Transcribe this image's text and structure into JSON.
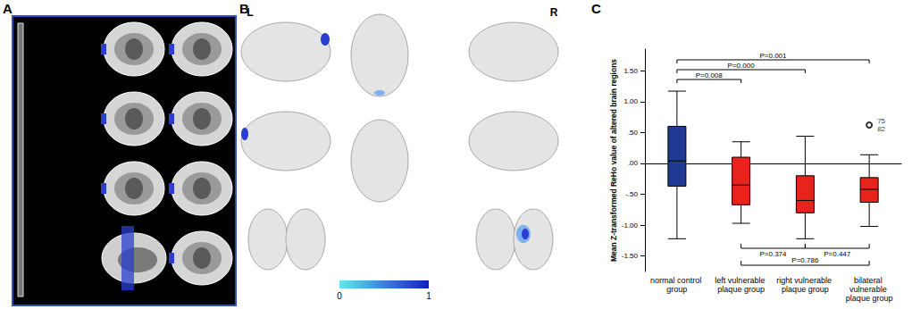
{
  "panel_labels": [
    "A",
    "B",
    "C"
  ],
  "panel_b": {
    "hemisphere_labels": [
      "L",
      "R"
    ],
    "colorbar": {
      "range": [
        0,
        1
      ],
      "ticks": [
        0,
        1
      ]
    }
  },
  "chart_data": {
    "type": "boxplot",
    "y_label": "Mean Z-transformed ReHo value of altered brain regions",
    "categories": [
      "normal control group",
      "left vulnerable plaque group",
      "right vulnerable plaque group",
      "bilateral vulnerable plaque group"
    ],
    "boxes": [
      {
        "min": -1.22,
        "q1": -0.37,
        "median": 0.04,
        "q3": 0.6,
        "max": 1.17
      },
      {
        "min": -0.97,
        "q1": -0.67,
        "median": -0.35,
        "q3": 0.1,
        "max": 0.35
      },
      {
        "min": -1.22,
        "q1": -0.8,
        "median": -0.6,
        "q3": -0.2,
        "max": 0.44
      },
      {
        "min": -1.02,
        "q1": -0.63,
        "median": -0.42,
        "q3": -0.23,
        "max": 0.14
      }
    ],
    "colors": [
      "#1f3a93",
      "#e8231c",
      "#e8231c",
      "#e8231c"
    ],
    "outliers": [
      {
        "category": "bilateral vulnerable plaque group",
        "value": 0.62,
        "labels": [
          "75",
          "82"
        ]
      }
    ],
    "marker": "circle",
    "ylim": [
      -1.75,
      1.85
    ],
    "yticks": [
      {
        "value": -1.5,
        "label": "-1.50"
      },
      {
        "value": -1.0,
        "label": "-1.00"
      },
      {
        "value": -0.5,
        "label": "-.50"
      },
      {
        "value": 0,
        "label": ".00"
      },
      {
        "value": 0.5,
        "label": ".50"
      },
      {
        "value": 1.0,
        "label": "1.00"
      },
      {
        "value": 1.5,
        "label": "1.50"
      }
    ],
    "annotations": [
      {
        "text": "P=0.008",
        "from": "normal control group",
        "to": "left vulnerable plaque group",
        "side": "top"
      },
      {
        "text": "P=0.000",
        "from": "normal control group",
        "to": "right vulnerable plaque group",
        "side": "top"
      },
      {
        "text": "P=0.001",
        "from": "normal control group",
        "to": "bilateral vulnerable plaque group",
        "side": "top"
      },
      {
        "text": "P=0.374",
        "from": "left vulnerable plaque group",
        "to": "right vulnerable plaque group",
        "side": "bottom"
      },
      {
        "text": "P=0.447",
        "from": "right vulnerable plaque group",
        "to": "bilateral vulnerable plaque group",
        "side": "bottom"
      },
      {
        "text": "P=0.786",
        "from": "left vulnerable plaque group",
        "to": "bilateral vulnerable plaque group",
        "side": "bottom"
      }
    ],
    "grid": false
  }
}
